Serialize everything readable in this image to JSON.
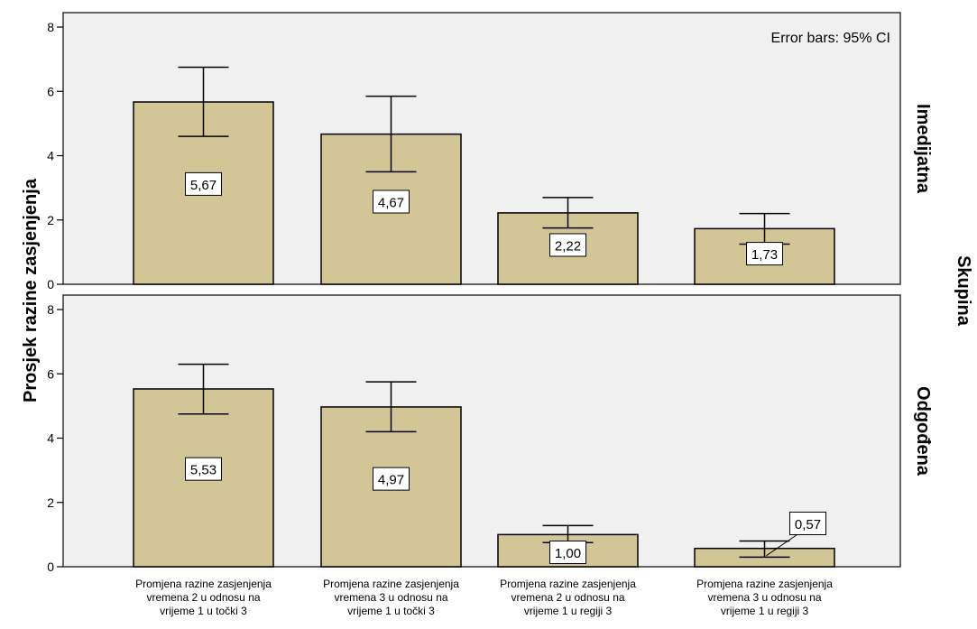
{
  "chart_data": {
    "type": "bar",
    "ylabel": "Prosjek razine zasjenjenja",
    "facet_title": "Skupina",
    "note": "Error bars: 95% CI",
    "ylim": [
      0,
      8
    ],
    "yticks": [
      "0",
      "2",
      "4",
      "6",
      "8"
    ],
    "categories": [
      [
        "Promjena razine zasjenjenja",
        "vremena 2 u odnosu na",
        "vrijeme 1 u točki 3"
      ],
      [
        "Promjena razine zasjenjenja",
        "vremena 3 u odnosu na",
        "vrijeme 1 u točki 3"
      ],
      [
        "Promjena razine zasjenjenja",
        "vremena 2 u odnosu na",
        "vrijeme 1 u regiji 3"
      ],
      [
        "Promjena razine zasjenjenja",
        "vremena 3 u odnosu na",
        "vrijeme 1 u regiji 3"
      ]
    ],
    "panels": [
      {
        "name": "Imedijatna",
        "values": [
          5.67,
          4.67,
          2.22,
          1.73
        ],
        "labels": [
          "5,67",
          "4,67",
          "2,22",
          "1,73"
        ],
        "ci_low": [
          4.6,
          3.5,
          1.75,
          1.25
        ],
        "ci_high": [
          6.75,
          5.85,
          2.7,
          2.2
        ]
      },
      {
        "name": "Odgođena",
        "values": [
          5.53,
          4.97,
          1.0,
          0.57
        ],
        "labels": [
          "5,53",
          "4,97",
          "1,00",
          "0,57"
        ],
        "ci_low": [
          4.75,
          4.2,
          0.75,
          0.3
        ],
        "ci_high": [
          6.3,
          5.75,
          1.28,
          0.8
        ]
      }
    ],
    "colors": {
      "bar": "#d2c697",
      "panel_bg": "#f0f0f0"
    },
    "grid": false
  }
}
